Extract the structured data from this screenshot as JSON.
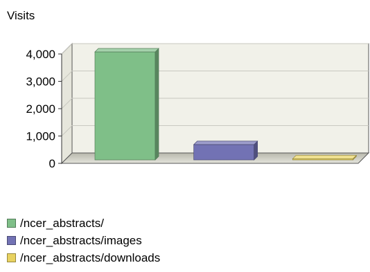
{
  "chart_data": {
    "type": "bar",
    "ylabel": "Visits",
    "ylim": [
      0,
      4000
    ],
    "yticks": [
      "0",
      "1,000",
      "2,000",
      "3,000",
      "4,000"
    ],
    "grid": true,
    "legend_placement": "bottom-left",
    "series": [
      {
        "name": "/ncer_abstracts/",
        "value": 3950,
        "color": "#7fbf88"
      },
      {
        "name": "/ncer_abstracts/images",
        "value": 560,
        "color": "#7272b4"
      },
      {
        "name": "/ncer_abstracts/downloads",
        "value": 40,
        "color": "#e8d260"
      }
    ]
  }
}
